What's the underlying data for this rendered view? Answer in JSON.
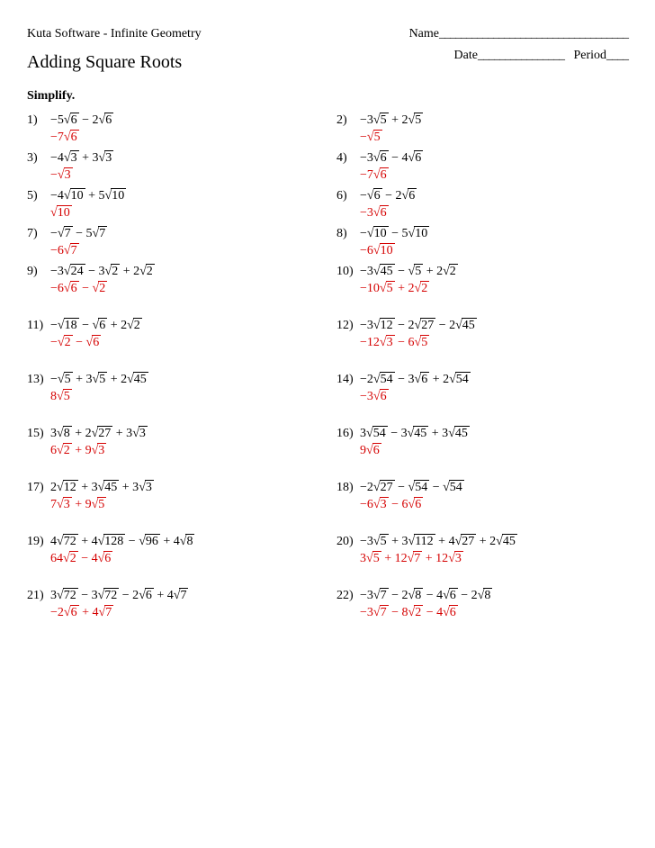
{
  "header": {
    "software": "Kuta Software - Infinite Geometry",
    "name_label": "Name",
    "name_blank": "___________________________________",
    "title": "Adding Square Roots",
    "date_label": "Date",
    "date_blank": "________________",
    "period_label": "Period",
    "period_blank": "____",
    "instruction": "Simplify."
  },
  "answer_color": "#d50000",
  "problems": [
    {
      "n": "1)",
      "q": [
        {
          "c": "−5"
        },
        {
          "r": "6"
        },
        {
          "t": " − 2"
        },
        {
          "r": "6"
        }
      ],
      "a": [
        {
          "t": "−7"
        },
        {
          "r": "6"
        }
      ]
    },
    {
      "n": "2)",
      "q": [
        {
          "c": "−3"
        },
        {
          "r": "5"
        },
        {
          "t": " + 2"
        },
        {
          "r": "5"
        }
      ],
      "a": [
        {
          "t": "−"
        },
        {
          "r": "5"
        }
      ]
    },
    {
      "n": "3)",
      "q": [
        {
          "c": "−4"
        },
        {
          "r": "3"
        },
        {
          "t": " + 3"
        },
        {
          "r": "3"
        }
      ],
      "a": [
        {
          "t": "−"
        },
        {
          "r": "3"
        }
      ]
    },
    {
      "n": "4)",
      "q": [
        {
          "c": "−3"
        },
        {
          "r": "6"
        },
        {
          "t": " − 4"
        },
        {
          "r": "6"
        }
      ],
      "a": [
        {
          "t": "−7"
        },
        {
          "r": "6"
        }
      ]
    },
    {
      "n": "5)",
      "q": [
        {
          "c": "−4"
        },
        {
          "r": "10"
        },
        {
          "t": " + 5"
        },
        {
          "r": "10"
        }
      ],
      "a": [
        {
          "r": "10"
        }
      ]
    },
    {
      "n": "6)",
      "q": [
        {
          "c": "−"
        },
        {
          "r": "6"
        },
        {
          "t": " − 2"
        },
        {
          "r": "6"
        }
      ],
      "a": [
        {
          "t": "−3"
        },
        {
          "r": "6"
        }
      ]
    },
    {
      "n": "7)",
      "q": [
        {
          "c": "−"
        },
        {
          "r": "7"
        },
        {
          "t": " − 5"
        },
        {
          "r": "7"
        }
      ],
      "a": [
        {
          "t": "−6"
        },
        {
          "r": "7"
        }
      ]
    },
    {
      "n": "8)",
      "q": [
        {
          "c": "−"
        },
        {
          "r": "10"
        },
        {
          "t": " − 5"
        },
        {
          "r": "10"
        }
      ],
      "a": [
        {
          "t": "−6"
        },
        {
          "r": "10"
        }
      ]
    },
    {
      "n": "9)",
      "tall": true,
      "q": [
        {
          "c": "−3"
        },
        {
          "r": "24"
        },
        {
          "t": " − 3"
        },
        {
          "r": "2"
        },
        {
          "t": " + 2"
        },
        {
          "r": "2"
        }
      ],
      "a": [
        {
          "t": "−6"
        },
        {
          "r": "6"
        },
        {
          "t": " − "
        },
        {
          "r": "2"
        }
      ]
    },
    {
      "n": "10)",
      "tall": true,
      "q": [
        {
          "c": "−3"
        },
        {
          "r": "45"
        },
        {
          "t": " − "
        },
        {
          "r": "5"
        },
        {
          "t": " + 2"
        },
        {
          "r": "2"
        }
      ],
      "a": [
        {
          "t": "−10"
        },
        {
          "r": "5"
        },
        {
          "t": " + 2"
        },
        {
          "r": "2"
        }
      ]
    },
    {
      "n": "11)",
      "tall": true,
      "q": [
        {
          "c": "−"
        },
        {
          "r": "18"
        },
        {
          "t": " − "
        },
        {
          "r": "6"
        },
        {
          "t": " + 2"
        },
        {
          "r": "2"
        }
      ],
      "a": [
        {
          "t": "−"
        },
        {
          "r": "2"
        },
        {
          "t": " − "
        },
        {
          "r": "6"
        }
      ]
    },
    {
      "n": "12)",
      "tall": true,
      "q": [
        {
          "c": "−3"
        },
        {
          "r": "12"
        },
        {
          "t": " − 2"
        },
        {
          "r": "27"
        },
        {
          "t": " − 2"
        },
        {
          "r": "45"
        }
      ],
      "a": [
        {
          "t": "−12"
        },
        {
          "r": "3"
        },
        {
          "t": " − 6"
        },
        {
          "r": "5"
        }
      ]
    },
    {
      "n": "13)",
      "tall": true,
      "q": [
        {
          "c": "−"
        },
        {
          "r": "5"
        },
        {
          "t": " + 3"
        },
        {
          "r": "5"
        },
        {
          "t": " + 2"
        },
        {
          "r": "45"
        }
      ],
      "a": [
        {
          "t": "8"
        },
        {
          "r": "5"
        }
      ]
    },
    {
      "n": "14)",
      "tall": true,
      "q": [
        {
          "c": "−2"
        },
        {
          "r": "54"
        },
        {
          "t": " − 3"
        },
        {
          "r": "6"
        },
        {
          "t": " + 2"
        },
        {
          "r": "54"
        }
      ],
      "a": [
        {
          "t": "−3"
        },
        {
          "r": "6"
        }
      ]
    },
    {
      "n": "15)",
      "tall": true,
      "q": [
        {
          "c": "3"
        },
        {
          "r": "8"
        },
        {
          "t": " + 2"
        },
        {
          "r": "27"
        },
        {
          "t": " + 3"
        },
        {
          "r": "3"
        }
      ],
      "a": [
        {
          "t": "6"
        },
        {
          "r": "2"
        },
        {
          "t": " + 9"
        },
        {
          "r": "3"
        }
      ]
    },
    {
      "n": "16)",
      "tall": true,
      "q": [
        {
          "c": "3"
        },
        {
          "r": "54"
        },
        {
          "t": " − 3"
        },
        {
          "r": "45"
        },
        {
          "t": " + 3"
        },
        {
          "r": "45"
        }
      ],
      "a": [
        {
          "t": "9"
        },
        {
          "r": "6"
        }
      ]
    },
    {
      "n": "17)",
      "tall": true,
      "q": [
        {
          "c": "2"
        },
        {
          "r": "12"
        },
        {
          "t": " + 3"
        },
        {
          "r": "45"
        },
        {
          "t": " + 3"
        },
        {
          "r": "3"
        }
      ],
      "a": [
        {
          "t": "7"
        },
        {
          "r": "3"
        },
        {
          "t": " + 9"
        },
        {
          "r": "5"
        }
      ]
    },
    {
      "n": "18)",
      "tall": true,
      "q": [
        {
          "c": "−2"
        },
        {
          "r": "27"
        },
        {
          "t": " − "
        },
        {
          "r": "54"
        },
        {
          "t": " − "
        },
        {
          "r": "54"
        }
      ],
      "a": [
        {
          "t": "−6"
        },
        {
          "r": "3"
        },
        {
          "t": " − 6"
        },
        {
          "r": "6"
        }
      ]
    },
    {
      "n": "19)",
      "tall": true,
      "q": [
        {
          "c": "4"
        },
        {
          "r": "72"
        },
        {
          "t": " + 4"
        },
        {
          "r": "128"
        },
        {
          "t": " − "
        },
        {
          "r": "96"
        },
        {
          "t": " + 4"
        },
        {
          "r": "8"
        }
      ],
      "a": [
        {
          "t": "64"
        },
        {
          "r": "2"
        },
        {
          "t": " − 4"
        },
        {
          "r": "6"
        }
      ]
    },
    {
      "n": "20)",
      "tall": true,
      "q": [
        {
          "c": "−3"
        },
        {
          "r": "5"
        },
        {
          "t": " + 3"
        },
        {
          "r": "112"
        },
        {
          "t": " + 4"
        },
        {
          "r": "27"
        },
        {
          "t": " + 2"
        },
        {
          "r": "45"
        }
      ],
      "a": [
        {
          "t": "3"
        },
        {
          "r": "5"
        },
        {
          "t": " + 12"
        },
        {
          "r": "7"
        },
        {
          "t": " + 12"
        },
        {
          "r": "3"
        }
      ]
    },
    {
      "n": "21)",
      "tall": true,
      "q": [
        {
          "c": "3"
        },
        {
          "r": "72"
        },
        {
          "t": " − 3"
        },
        {
          "r": "72"
        },
        {
          "t": " − 2"
        },
        {
          "r": "6"
        },
        {
          "t": " + 4"
        },
        {
          "r": "7"
        }
      ],
      "a": [
        {
          "t": "−2"
        },
        {
          "r": "6"
        },
        {
          "t": " + 4"
        },
        {
          "r": "7"
        }
      ]
    },
    {
      "n": "22)",
      "tall": true,
      "q": [
        {
          "c": "−3"
        },
        {
          "r": "7"
        },
        {
          "t": " − 2"
        },
        {
          "r": "8"
        },
        {
          "t": " − 4"
        },
        {
          "r": "6"
        },
        {
          "t": " − 2"
        },
        {
          "r": "8"
        }
      ],
      "a": [
        {
          "t": "−3"
        },
        {
          "r": "7"
        },
        {
          "t": " − 8"
        },
        {
          "r": "2"
        },
        {
          "t": " − 4"
        },
        {
          "r": "6"
        }
      ]
    }
  ]
}
